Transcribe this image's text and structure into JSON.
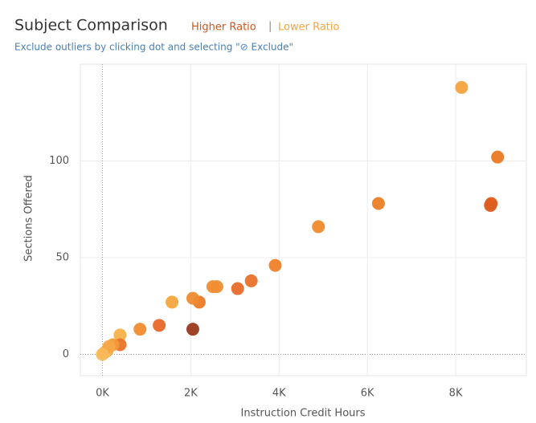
{
  "chart_data": {
    "type": "scatter",
    "title": "Subject Comparison",
    "legend": [
      {
        "label": "Higher Ratio",
        "color": "#d4541c"
      },
      {
        "label": "Lower Ratio",
        "color": "#f4a53a"
      }
    ],
    "legend_separator": "|",
    "subtitle": "Exclude outliers by clicking dot and selecting \"⊘ Exclude\"",
    "x_label": "Instruction Credit Hours",
    "y_label": "Sections Offered",
    "x": [
      8134,
      8949,
      8804,
      8786,
      6250,
      4891,
      3913,
      3370,
      3062,
      2591,
      2500,
      2192,
      2047,
      1576,
      1286,
      851,
      2047,
      399,
      399,
      236,
      109,
      54,
      145,
      0
    ],
    "values": [
      138,
      102,
      78,
      77,
      78,
      66,
      46,
      38,
      34,
      35,
      35,
      27,
      29,
      27,
      15,
      13,
      13,
      10,
      5,
      5,
      2,
      1,
      4,
      0
    ],
    "colors": [
      "#f5a33e",
      "#ea7a24",
      "#dd5d1f",
      "#dd5d1f",
      "#ec7f27",
      "#f08a2c",
      "#ee8129",
      "#e9722a",
      "#e66d29",
      "#f08d33",
      "#f08d33",
      "#ec7a27",
      "#f08a30",
      "#f5a740",
      "#e8682a",
      "#f18d30",
      "#9b3a1c",
      "#f7b04a",
      "#ea7428",
      "#f49a3a",
      "#f6ab48",
      "#f7b450",
      "#f5a847",
      "#f8b85a"
    ],
    "xlim": [
      -500,
      9600
    ],
    "ylim": [
      -11,
      150
    ],
    "xticks": [
      {
        "value": 0,
        "label": "0K"
      },
      {
        "value": 2000,
        "label": "2K"
      },
      {
        "value": 4000,
        "label": "4K"
      },
      {
        "value": 6000,
        "label": "6K"
      },
      {
        "value": 8000,
        "label": "8K"
      }
    ],
    "yticks": [
      0,
      50,
      100
    ],
    "grid": true
  }
}
